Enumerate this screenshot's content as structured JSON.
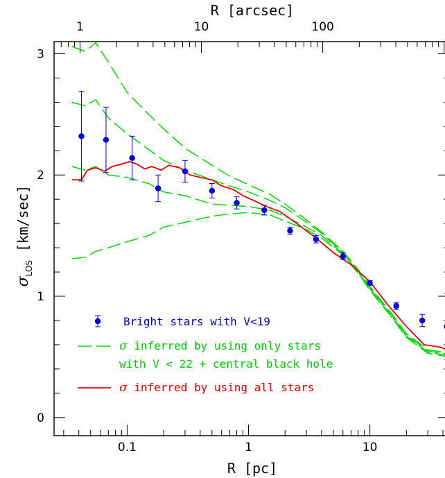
{
  "chart_data": {
    "type": "line",
    "xlabel": "R [pc]",
    "x_top_label": "R [arcsec]",
    "ylabel_symbol": "σ",
    "ylabel_subscript": "LOS",
    "ylabel_units": "[km/sec]",
    "x_scale": "log",
    "xlim": [
      0.025,
      45
    ],
    "ylim": [
      -0.15,
      3.1
    ],
    "x_ticks": [
      {
        "value": 0.1,
        "label": "0.1"
      },
      {
        "value": 1,
        "label": "1"
      },
      {
        "value": 10,
        "label": "10"
      }
    ],
    "x_top_ticks": [
      {
        "value": 1,
        "label": "1"
      },
      {
        "value": 10,
        "label": "10"
      },
      {
        "value": 100,
        "label": "100"
      }
    ],
    "y_ticks": [
      {
        "value": 0,
        "label": "0"
      },
      {
        "value": 1,
        "label": "1"
      },
      {
        "value": 2,
        "label": "2"
      },
      {
        "value": 3,
        "label": "3"
      }
    ],
    "grid": false,
    "legend_position": "bottom-left",
    "colors": {
      "bright_stars": "#0000dd",
      "inferred_v22": "#00dd00",
      "inferred_all": "#ee0000"
    },
    "legend": [
      {
        "label": "Bright stars with V<19",
        "style": "points",
        "color": "#0000dd"
      },
      {
        "label_symbol": "σ",
        "label_line1": " inferred by using only stars",
        "label_line2": "with V < 22 + central black hole",
        "style": "dashed",
        "color": "#00dd00"
      },
      {
        "label_symbol": "σ",
        "label": " inferred by using all stars",
        "style": "solid",
        "color": "#ee0000"
      }
    ],
    "points": {
      "name": "Bright stars with V<19",
      "x": [
        0.042,
        0.067,
        0.11,
        0.18,
        0.3,
        0.5,
        0.8,
        1.35,
        2.2,
        3.6,
        6,
        10,
        16.5,
        27,
        43
      ],
      "y": [
        2.32,
        2.29,
        2.14,
        1.89,
        2.03,
        1.87,
        1.77,
        1.71,
        1.54,
        1.47,
        1.33,
        1.11,
        0.92,
        0.8,
        0.75
      ],
      "yerr": [
        0.37,
        0.27,
        0.18,
        0.11,
        0.09,
        0.06,
        0.05,
        0.04,
        0.03,
        0.03,
        0.03,
        0.02,
        0.03,
        0.05,
        0.27
      ]
    },
    "series": [
      {
        "color": "#00dd00",
        "style": "dashed",
        "x": [
          0.035,
          0.045,
          0.055,
          0.07,
          0.1,
          0.15,
          0.2,
          0.3,
          0.5,
          0.7,
          1,
          1.5,
          2,
          3,
          4,
          6,
          8,
          10,
          15,
          20,
          30,
          45
        ],
        "y": [
          3.06,
          3.02,
          3.09,
          2.93,
          2.68,
          2.5,
          2.38,
          2.22,
          2.08,
          1.99,
          1.92,
          1.84,
          1.76,
          1.63,
          1.53,
          1.37,
          1.22,
          1.08,
          0.86,
          0.69,
          0.56,
          0.53
        ]
      },
      {
        "color": "#00dd00",
        "style": "dashed",
        "x": [
          0.035,
          0.045,
          0.055,
          0.07,
          0.1,
          0.15,
          0.2,
          0.3,
          0.5,
          0.7,
          1,
          1.5,
          2,
          3,
          4,
          6,
          8,
          10,
          15,
          20,
          30,
          45
        ],
        "y": [
          2.6,
          2.57,
          2.62,
          2.47,
          2.34,
          2.21,
          2.12,
          2.04,
          1.96,
          1.91,
          1.86,
          1.79,
          1.73,
          1.61,
          1.52,
          1.36,
          1.21,
          1.07,
          0.85,
          0.68,
          0.55,
          0.52
        ]
      },
      {
        "color": "#00dd00",
        "style": "dashed",
        "x": [
          0.035,
          0.045,
          0.055,
          0.07,
          0.1,
          0.15,
          0.2,
          0.3,
          0.5,
          0.7,
          1,
          1.5,
          2,
          3,
          4,
          6,
          8,
          10,
          15,
          20,
          30,
          45
        ],
        "y": [
          2.07,
          2.04,
          2.07,
          2.0,
          1.98,
          1.93,
          1.86,
          1.83,
          1.76,
          1.75,
          1.74,
          1.71,
          1.66,
          1.57,
          1.5,
          1.35,
          1.2,
          1.06,
          0.84,
          0.67,
          0.54,
          0.51
        ]
      },
      {
        "color": "#00dd00",
        "style": "dashed",
        "x": [
          0.035,
          0.045,
          0.055,
          0.07,
          0.1,
          0.15,
          0.2,
          0.3,
          0.5,
          0.7,
          1,
          1.5,
          2,
          3,
          4,
          6,
          8,
          10,
          15,
          20,
          30,
          45
        ],
        "y": [
          1.31,
          1.32,
          1.37,
          1.4,
          1.45,
          1.5,
          1.57,
          1.61,
          1.66,
          1.68,
          1.69,
          1.67,
          1.62,
          1.55,
          1.48,
          1.34,
          1.19,
          1.05,
          0.83,
          0.66,
          0.53,
          0.5
        ]
      },
      {
        "color": "#ee0000",
        "style": "solid",
        "x": [
          0.035,
          0.042,
          0.047,
          0.055,
          0.065,
          0.075,
          0.09,
          0.105,
          0.12,
          0.14,
          0.16,
          0.19,
          0.22,
          0.27,
          0.33,
          0.4,
          0.5,
          0.6,
          0.75,
          0.9,
          1.1,
          1.4,
          1.8,
          2.5,
          3.5,
          5,
          7,
          10,
          14,
          20,
          28,
          38,
          45
        ],
        "y": [
          1.96,
          1.96,
          2.04,
          2.06,
          2.03,
          2.07,
          2.09,
          2.11,
          2.09,
          2.05,
          2.07,
          2.04,
          2.08,
          2.06,
          2.0,
          1.98,
          1.96,
          1.91,
          1.88,
          1.83,
          1.79,
          1.74,
          1.7,
          1.6,
          1.49,
          1.36,
          1.26,
          1.12,
          0.93,
          0.75,
          0.6,
          0.58,
          0.55
        ]
      }
    ]
  }
}
